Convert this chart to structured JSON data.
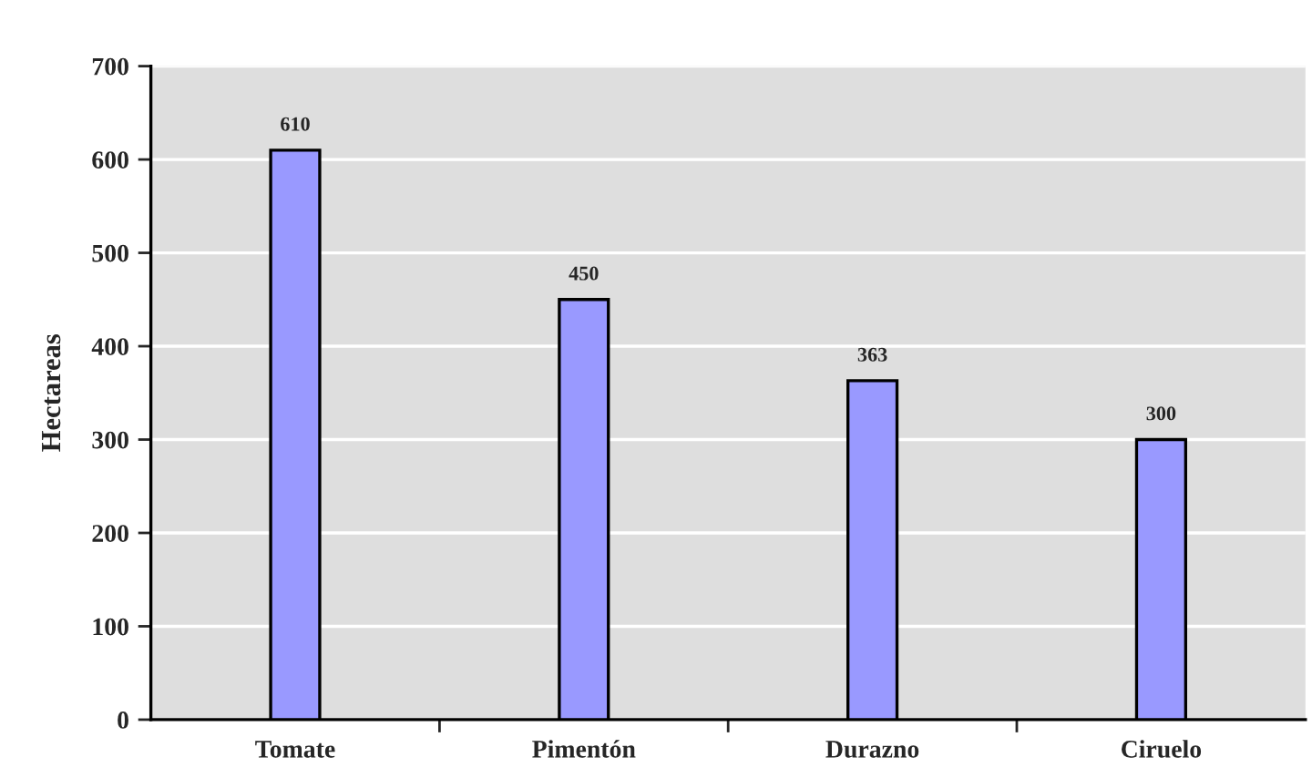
{
  "chart_data": {
    "type": "bar",
    "ylabel": "Hectareas",
    "categories": [
      "Tomate",
      "Pimentón",
      "Durazno",
      "Ciruelo"
    ],
    "values": [
      610,
      450,
      363,
      300
    ],
    "color": "#9999ff",
    "ylim": [
      0,
      700
    ],
    "yticks": [
      0,
      100,
      200,
      300,
      400,
      500,
      600,
      700
    ],
    "grid": "y",
    "data_labels": true
  }
}
